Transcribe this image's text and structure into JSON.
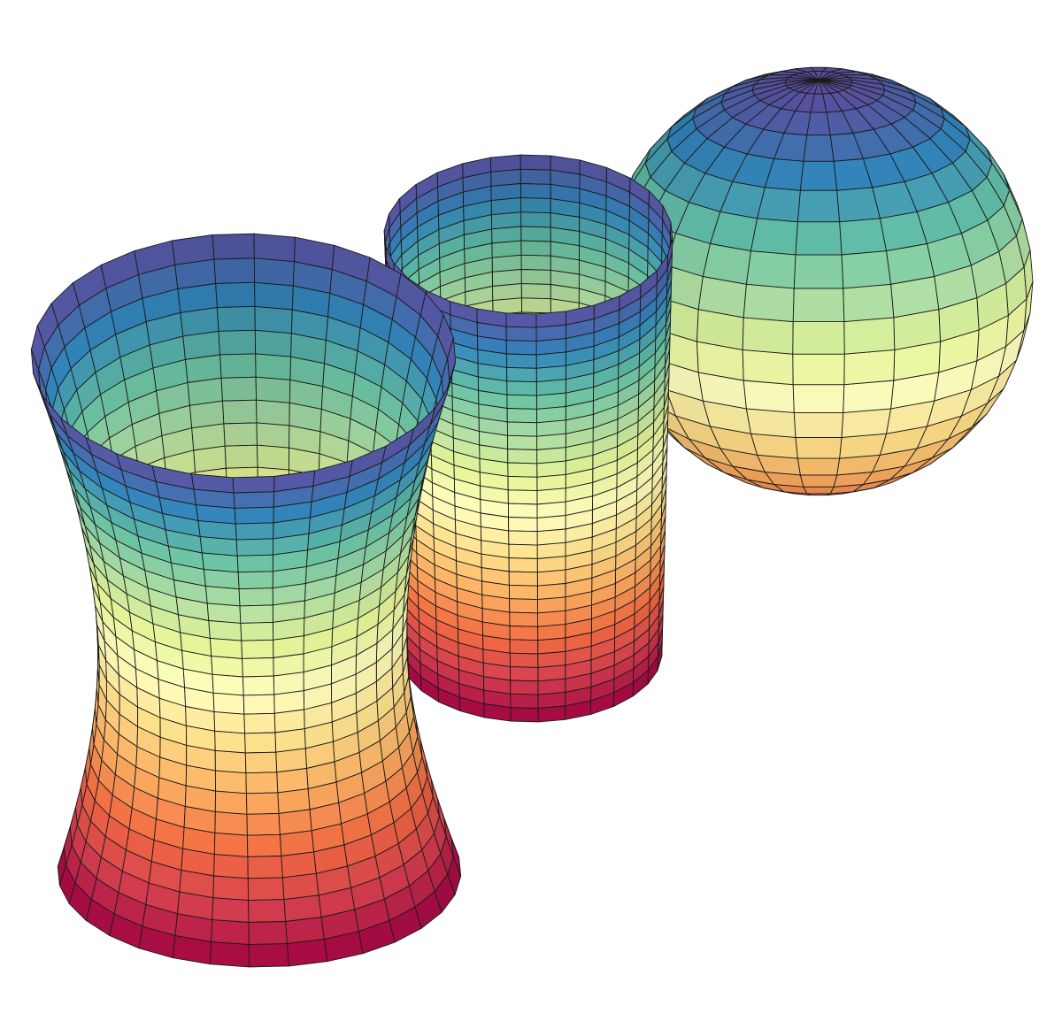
{
  "figure": {
    "background": "#ffffff",
    "grid_line_color": "#1a1a1a",
    "colormap": [
      "#9e0142",
      "#d53e4f",
      "#f46d43",
      "#fdae61",
      "#fee08b",
      "#ffffbf",
      "#e6f598",
      "#abdda4",
      "#66c2a5",
      "#3288bd",
      "#5e4fa2"
    ],
    "surfaces": [
      {
        "kind": "sphere",
        "color_range": [
          0.2,
          1.0
        ]
      },
      {
        "kind": "cylinder",
        "color_range": [
          0.0,
          1.0
        ]
      },
      {
        "kind": "hyperboloid",
        "color_range": [
          0.0,
          1.0
        ]
      }
    ]
  }
}
